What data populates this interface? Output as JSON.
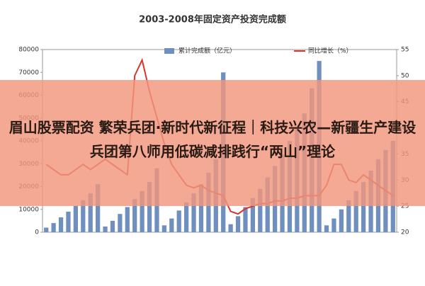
{
  "chart_data": {
    "type": "bar-line",
    "title": "2003-2008年固定资产投资完成额",
    "categories": [
      null,
      null,
      null,
      null,
      null,
      null,
      null,
      null,
      null,
      null,
      null,
      null,
      null,
      null,
      null,
      null,
      null,
      null,
      null,
      null,
      null,
      null,
      null,
      null,
      null,
      null,
      null,
      null,
      null,
      null,
      null,
      null,
      null,
      null,
      null,
      null,
      null,
      null,
      null,
      null,
      null,
      null,
      null,
      null,
      null,
      null,
      null,
      null
    ],
    "series": [
      {
        "name": "累计完成额（亿元）",
        "color": "#6f8fbf",
        "type": "bar",
        "values": [
          2000,
          4000,
          6500,
          9000,
          11500,
          14000,
          17000,
          21000,
          2500,
          5000,
          8000,
          11000,
          14500,
          18000,
          22000,
          28000,
          3000,
          6000,
          9500,
          13000,
          17000,
          21000,
          26000,
          32000,
          70000,
          3500,
          7000,
          11000,
          15000,
          19000,
          24000,
          29000,
          34000,
          40000,
          46000,
          52000,
          63000,
          75000,
          3000,
          6000,
          10000,
          14000,
          18000,
          22000,
          27000,
          32000,
          36000,
          40000
        ]
      },
      {
        "name": "同比增长（%）",
        "color": "#d9352e",
        "type": "line",
        "axis": "y2",
        "values": [
          33,
          32,
          31,
          31,
          32,
          33,
          32,
          33,
          34,
          33,
          32,
          31,
          50,
          53,
          47,
          42,
          37,
          33,
          31,
          29,
          28.5,
          29,
          28,
          27.5,
          27,
          24,
          23.5,
          24.5,
          25,
          25.5,
          25.5,
          26,
          26,
          26.5,
          26.5,
          27,
          27,
          27,
          29,
          33,
          33,
          30,
          29.5,
          31,
          30,
          29,
          28,
          27
        ]
      }
    ],
    "ylim": [
      0,
      80000
    ],
    "yticks": [
      0,
      10000,
      20000,
      30000,
      40000,
      50000,
      60000,
      70000,
      80000
    ],
    "y2lim": [
      20,
      55
    ],
    "y2ticks": [
      20,
      25,
      30,
      35,
      40,
      45,
      50,
      55
    ]
  },
  "overlay": {
    "text": "眉山股票配资 繁荣兵团·新时代新征程｜科技兴农—新疆生产建设兵团第八师用低碳减排践行“两山”理论"
  }
}
